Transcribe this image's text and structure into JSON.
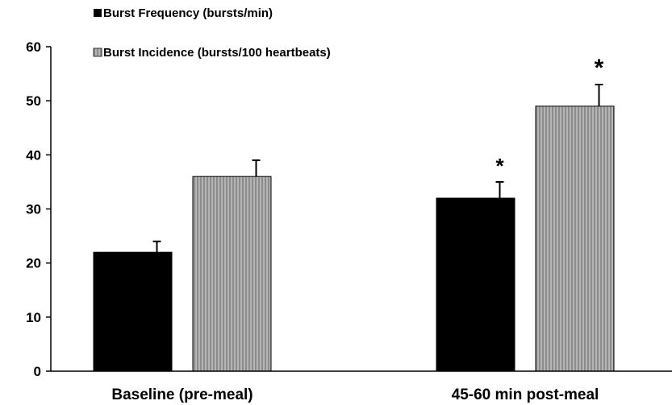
{
  "chart_data": {
    "type": "bar",
    "categories": [
      "Baseline (pre-meal)",
      "45-60 min post-meal"
    ],
    "series": [
      {
        "name": "Burst Frequency (bursts/min)",
        "values": [
          22,
          32
        ],
        "errors": [
          2,
          3
        ],
        "color": "#000000",
        "fill": "solid"
      },
      {
        "name": "Burst Incidence (bursts/100 heartbeats)",
        "values": [
          36,
          49
        ],
        "errors": [
          3,
          4
        ],
        "color": "#a8a8a8",
        "fill": "vertical-hatch"
      }
    ],
    "yticks": [
      0,
      10,
      20,
      30,
      40,
      50,
      60
    ],
    "ylim": [
      0,
      60
    ],
    "xlabel": "",
    "ylabel": "",
    "title": "",
    "grid": false,
    "legend_position": "top-left",
    "annotations": [
      {
        "text": "*",
        "category": "45-60 min post-meal",
        "series": "Burst Frequency (bursts/min)"
      },
      {
        "text": "*",
        "category": "45-60 min post-meal",
        "series": "Burst Incidence (bursts/100 heartbeats)"
      }
    ]
  }
}
